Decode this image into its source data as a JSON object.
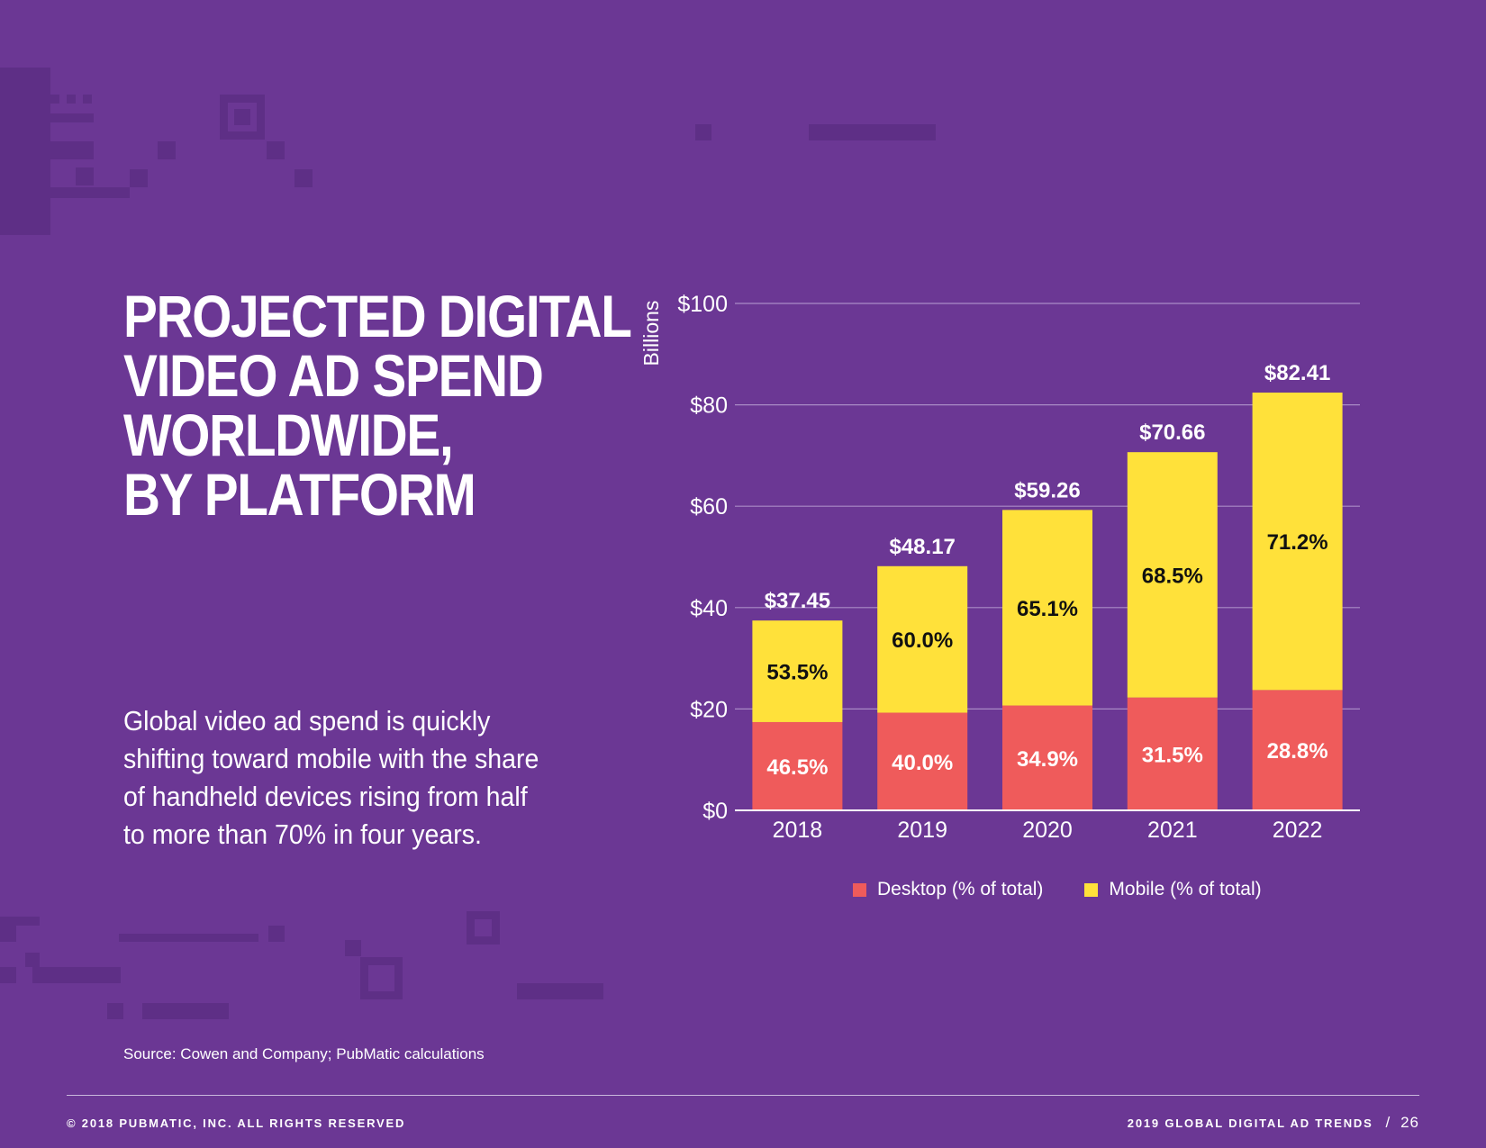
{
  "page": {
    "title_lines": [
      "PROJECTED DIGITAL",
      "VIDEO AD SPEND",
      "WORLDWIDE,",
      "BY PLATFORM"
    ],
    "body_lines": [
      "Global video ad spend is quickly",
      "shifting toward mobile with the share",
      "of handheld devices rising from half",
      "to more than 70% in four years."
    ],
    "source": "Source: Cowen and Company; PubMatic calculations",
    "footer_left": "© 2018 PUBMATIC, INC. ALL RIGHTS RESERVED",
    "footer_right": "2019 GLOBAL DIGITAL AD TRENDS",
    "footer_sep": "/",
    "page_number": "26"
  },
  "colors": {
    "background": "#6b3794",
    "desktop": "#ef5b5b",
    "mobile": "#ffe13a",
    "grid": "#a98bc6"
  },
  "chart_data": {
    "type": "bar",
    "stacked": true,
    "categories": [
      "2018",
      "2019",
      "2020",
      "2021",
      "2022"
    ],
    "totals": [
      37.45,
      48.17,
      59.26,
      70.66,
      82.41
    ],
    "total_labels": [
      "$37.45",
      "$48.17",
      "$59.26",
      "$70.66",
      "$82.41"
    ],
    "series": [
      {
        "name": "Desktop (% of total)",
        "color": "#ef5b5b",
        "share_pct": [
          46.5,
          40.0,
          34.9,
          31.5,
          28.8
        ],
        "labels": [
          "46.5%",
          "40.0%",
          "34.9%",
          "31.5%",
          "28.8%"
        ]
      },
      {
        "name": "Mobile (% of total)",
        "color": "#ffe13a",
        "share_pct": [
          53.5,
          60.0,
          65.1,
          68.5,
          71.2
        ],
        "labels": [
          "53.5%",
          "60.0%",
          "65.1%",
          "68.5%",
          "71.2%"
        ]
      }
    ],
    "ylabel": "Billions",
    "ylim": [
      0,
      100
    ],
    "yticks": [
      0,
      20,
      40,
      60,
      80,
      100
    ],
    "ytick_labels": [
      "$0",
      "$20",
      "$40",
      "$60",
      "$80",
      "$100"
    ],
    "grid": true,
    "legend": "bottom"
  }
}
